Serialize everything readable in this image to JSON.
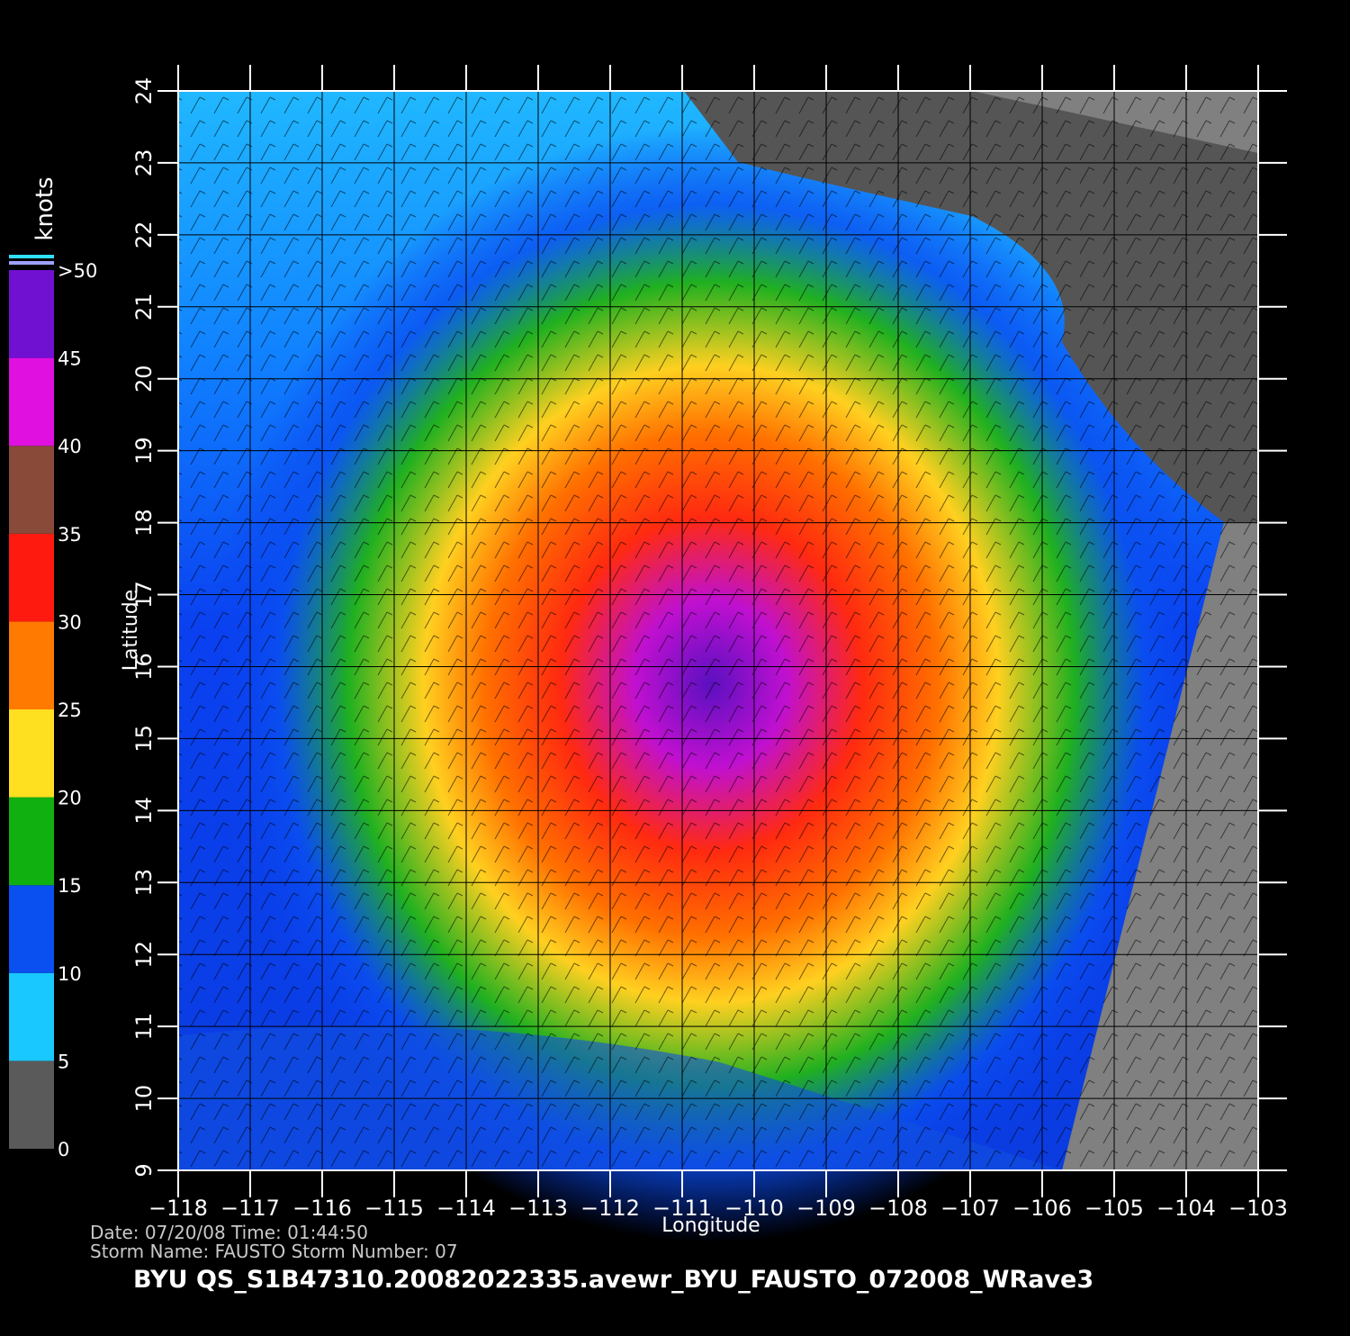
{
  "chart_data": {
    "type": "map",
    "title": "BYU  QS_S1B47310.20082022335.avewr_BYU_FAUSTO_072008_WRave3",
    "footer": [
      "Date: 07/20/08   Time: 01:44:50",
      "Storm  Name: FAUSTO   Storm  Number: 07"
    ],
    "xlabel": "Longitude",
    "ylabel": "Latitude",
    "xlim": [
      -118,
      -103
    ],
    "ylim": [
      9,
      24
    ],
    "xticks": [
      {
        "value": -118,
        "label": "−118"
      },
      {
        "value": -117,
        "label": "−117"
      },
      {
        "value": -116,
        "label": "−116"
      },
      {
        "value": -115,
        "label": "−115"
      },
      {
        "value": -114,
        "label": "−114"
      },
      {
        "value": -113,
        "label": "−113"
      },
      {
        "value": -112,
        "label": "−112"
      },
      {
        "value": -111,
        "label": "−111"
      },
      {
        "value": -110,
        "label": "−110"
      },
      {
        "value": -109,
        "label": "−109"
      },
      {
        "value": -108,
        "label": "−108"
      },
      {
        "value": -107,
        "label": "−107"
      },
      {
        "value": -106,
        "label": "−106"
      },
      {
        "value": -105,
        "label": "−105"
      },
      {
        "value": -104,
        "label": "−104"
      },
      {
        "value": -103,
        "label": "−103"
      }
    ],
    "yticks": [
      9,
      10,
      11,
      12,
      13,
      14,
      15,
      16,
      17,
      18,
      19,
      20,
      21,
      22,
      23,
      24
    ],
    "grid": true,
    "colorbar": {
      "label": "knots",
      "lim": [
        0,
        50
      ],
      "ticks": [
        0,
        5,
        10,
        15,
        20,
        25,
        30,
        35,
        40,
        45,
        {
          "value": 50,
          "label": ">50"
        }
      ],
      "colors": [
        "#5a5a5a",
        "#19c8ff",
        "#0a50f0",
        "#10b010",
        "#ffe020",
        "#ff7a00",
        "#ff1a10",
        "#8a4a3a",
        "#e010e0",
        "#7010d0"
      ]
    }
  }
}
